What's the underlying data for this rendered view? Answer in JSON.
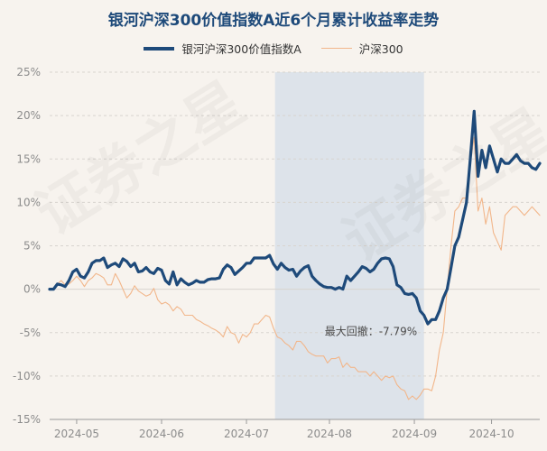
{
  "chart_data": {
    "type": "line",
    "title": "银河沪深300价值指数A近6个月累计收益率走势",
    "legend": [
      "银河沪深300价值指数A",
      "沪深300"
    ],
    "ylim": [
      -15,
      25
    ],
    "yticks": [
      25,
      20,
      15,
      10,
      5,
      0,
      -5,
      -10,
      -15
    ],
    "ytick_labels": [
      "25%",
      "20%",
      "15%",
      "10%",
      "5%",
      "0%",
      "-5%",
      "-10%",
      "-15%"
    ],
    "xticks": [
      "2024-05",
      "2024-06",
      "2024-07",
      "2024-08",
      "2024-09",
      "2024-10"
    ],
    "annotation": "最大回撤：-7.79%",
    "drawdown_region": {
      "start": 58.4,
      "end": 97.0
    },
    "colors": {
      "fund": "#1e4a7a",
      "index": "#f2b68a",
      "shade": "#dde3ea",
      "grid": "#d8d4cf"
    },
    "watermark": "证券之星",
    "x_days": [
      0,
      1,
      2,
      3,
      4,
      5,
      6,
      7,
      8,
      9,
      10,
      11,
      12,
      13,
      14,
      15,
      16,
      17,
      18,
      19,
      20,
      21,
      22,
      23,
      24,
      25,
      26,
      27,
      28,
      29,
      30,
      31,
      32,
      33,
      34,
      35,
      36,
      37,
      38,
      39,
      40,
      41,
      42,
      43,
      44,
      45,
      46,
      47,
      48,
      49,
      50,
      51,
      52,
      53,
      54,
      55,
      56,
      57,
      58,
      59,
      60,
      61,
      62,
      63,
      64,
      65,
      66,
      67,
      68,
      69,
      70,
      71,
      72,
      73,
      74,
      75,
      76,
      77,
      78,
      79,
      80,
      81,
      82,
      83,
      84,
      85,
      86,
      87,
      88,
      89,
      90,
      91,
      92,
      93,
      94,
      95,
      96,
      97,
      98,
      99,
      100,
      101,
      102,
      103,
      104,
      105,
      106,
      107,
      108,
      109,
      110,
      111,
      112,
      113,
      114,
      115,
      116,
      117,
      118,
      119,
      120,
      121,
      122,
      123,
      124,
      125,
      126,
      127
    ],
    "series": [
      {
        "name": "银河沪深300价值指数A",
        "values": [
          0,
          0,
          0.6,
          0.5,
          0.3,
          1,
          2,
          2.3,
          1.5,
          1.3,
          2,
          3,
          3.3,
          3.3,
          3.6,
          2.5,
          2.8,
          3,
          2.6,
          3.5,
          3.2,
          2.6,
          3,
          2,
          2.1,
          2.5,
          2,
          1.8,
          2.4,
          2.2,
          1,
          0.6,
          2,
          0.5,
          1.2,
          0.8,
          0.5,
          0.7,
          1,
          0.8,
          0.8,
          1.1,
          1.2,
          1.2,
          1.3,
          2.3,
          2.8,
          2.5,
          1.7,
          2.1,
          2.5,
          3,
          3,
          3.6,
          3.6,
          3.6,
          3.6,
          3.9,
          2.9,
          2.3,
          3,
          2.5,
          2.2,
          2.3,
          1.5,
          2.1,
          2.5,
          2.7,
          1.5,
          1,
          0.6,
          0.3,
          0.2,
          0.2,
          0,
          0.2,
          0,
          1.5,
          1,
          1.5,
          2,
          2.6,
          2.4,
          2,
          2.3,
          3,
          3.5,
          3.6,
          3.5,
          2.6,
          0.5,
          0.2,
          -0.5,
          -0.6,
          -0.5,
          -1,
          -2.5,
          -3,
          -4,
          -3.5,
          -3.5,
          -2.5,
          -1,
          0,
          2.5,
          5,
          6,
          8,
          10,
          15,
          20.5,
          13,
          16,
          14,
          16.5,
          15,
          13.5,
          15,
          14.5,
          14.5,
          15,
          15.5,
          14.8,
          14.5,
          14.5,
          14,
          13.8,
          14.5
        ],
        "values_note": ""
      },
      {
        "name": "沪深300",
        "values": [
          0,
          0,
          0.6,
          1,
          0.5,
          0.6,
          1,
          1.5,
          1,
          0.3,
          1,
          1.3,
          1.8,
          1.6,
          1.3,
          0.5,
          0.5,
          1.8,
          1,
          0,
          -1,
          -0.5,
          0.4,
          -0.2,
          -0.5,
          -0.8,
          -0.6,
          0.1,
          -1.2,
          -1.7,
          -1.5,
          -1.8,
          -2.5,
          -2,
          -2.3,
          -3,
          -3,
          -3,
          -3.5,
          -3.7,
          -4,
          -4.2,
          -4.5,
          -4.7,
          -5,
          -5.5,
          -4.3,
          -5,
          -5.2,
          -6.2,
          -5.2,
          -5.5,
          -5,
          -4,
          -4,
          -3.5,
          -3,
          -3.2,
          -4.5,
          -5.5,
          -5.7,
          -6.2,
          -6.5,
          -7,
          -6,
          -6,
          -6.5,
          -7.2,
          -7.5,
          -7.7,
          -7.7,
          -7.7,
          -8.5,
          -8,
          -8,
          -7.8,
          -9,
          -8.5,
          -9,
          -9,
          -9.5,
          -9.5,
          -9.5,
          -10,
          -9.5,
          -10,
          -10.5,
          -10,
          -10.2,
          -10,
          -11,
          -11.5,
          -11.7,
          -12.7,
          -12.3,
          -12.7,
          -12.2,
          -11.5,
          -11.5,
          -11.7,
          -10,
          -7,
          -5,
          0,
          5,
          9,
          9.5,
          10.5,
          10.5,
          14.5,
          17.5,
          9,
          10.5,
          7.5,
          9.5,
          6.5,
          5.5,
          4.5,
          8.5,
          9,
          9.5,
          9.5,
          9,
          8.5,
          9,
          9.5,
          9,
          8.5
        ]
      }
    ]
  }
}
